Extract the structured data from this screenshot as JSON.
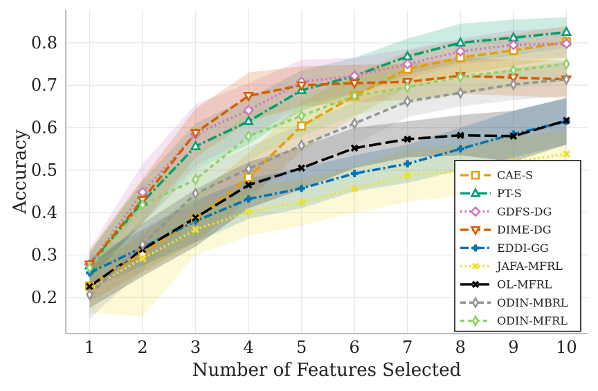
{
  "chart_data": {
    "type": "line",
    "title": "",
    "xlabel": "Number of Features Selected",
    "ylabel": "Accuracy",
    "x": [
      1,
      2,
      3,
      4,
      5,
      6,
      7,
      8,
      9,
      10
    ],
    "x_ticks": [
      "1",
      "2",
      "3",
      "4",
      "5",
      "6",
      "7",
      "8",
      "9",
      "10"
    ],
    "y_ticks": [
      "0.2",
      "0.3",
      "0.4",
      "0.5",
      "0.6",
      "0.7",
      "0.8"
    ],
    "xlim": [
      0.55,
      10.4
    ],
    "ylim": [
      0.115,
      0.878
    ],
    "grid": true,
    "legend_position": "lower-right",
    "series": [
      {
        "name": "CAE-S",
        "color": "#e69f00",
        "dash": "12,5",
        "marker": "square",
        "values": [
          0.227,
          0.305,
          0.385,
          0.483,
          0.604,
          0.675,
          0.738,
          0.765,
          0.782,
          0.802
        ],
        "lower": [
          0.19,
          0.26,
          0.33,
          0.43,
          0.545,
          0.625,
          0.695,
          0.725,
          0.745,
          0.765
        ],
        "upper": [
          0.265,
          0.35,
          0.44,
          0.54,
          0.66,
          0.725,
          0.78,
          0.805,
          0.82,
          0.84
        ]
      },
      {
        "name": "PT-S",
        "color": "#009e73",
        "dash": "14,4,3,4",
        "marker": "triangle",
        "values": [
          0.275,
          0.425,
          0.556,
          0.615,
          0.688,
          0.722,
          0.768,
          0.8,
          0.812,
          0.825
        ],
        "lower": [
          0.245,
          0.375,
          0.5,
          0.56,
          0.64,
          0.68,
          0.725,
          0.755,
          0.77,
          0.79
        ],
        "upper": [
          0.305,
          0.475,
          0.61,
          0.67,
          0.735,
          0.765,
          0.81,
          0.845,
          0.855,
          0.86
        ]
      },
      {
        "name": "GDFS-DG",
        "color": "#cc78bc",
        "dash": "2.5,4",
        "marker": "diamond",
        "values": [
          0.278,
          0.448,
          0.585,
          0.641,
          0.708,
          0.722,
          0.75,
          0.78,
          0.795,
          0.798
        ],
        "lower": [
          0.24,
          0.38,
          0.51,
          0.575,
          0.655,
          0.68,
          0.715,
          0.75,
          0.76,
          0.765
        ],
        "upper": [
          0.315,
          0.515,
          0.655,
          0.705,
          0.76,
          0.765,
          0.785,
          0.81,
          0.83,
          0.835
        ]
      },
      {
        "name": "DIME-DG",
        "color": "#d55e00",
        "dash": "12,5",
        "marker": "triangle-down",
        "values": [
          0.278,
          0.43,
          0.588,
          0.675,
          0.7,
          0.705,
          0.708,
          0.722,
          0.718,
          0.714
        ],
        "lower": [
          0.245,
          0.375,
          0.53,
          0.615,
          0.65,
          0.66,
          0.665,
          0.68,
          0.675,
          0.67
        ],
        "upper": [
          0.31,
          0.48,
          0.645,
          0.73,
          0.745,
          0.748,
          0.75,
          0.765,
          0.76,
          0.758
        ]
      },
      {
        "name": "EDDI-GG",
        "color": "#0173b2",
        "dash": "12,4,3,4",
        "marker": "plus",
        "values": [
          0.258,
          0.318,
          0.38,
          0.432,
          0.457,
          0.492,
          0.515,
          0.55,
          0.585,
          0.615
        ],
        "lower": [
          0.22,
          0.275,
          0.33,
          0.385,
          0.41,
          0.45,
          0.47,
          0.5,
          0.53,
          0.56
        ],
        "upper": [
          0.295,
          0.36,
          0.43,
          0.48,
          0.505,
          0.535,
          0.56,
          0.6,
          0.64,
          0.67
        ]
      },
      {
        "name": "JAFA-MFRL",
        "color": "#ece133",
        "dash": "2.5,4",
        "marker": "x",
        "values": [
          0.22,
          0.292,
          0.36,
          0.402,
          0.425,
          0.456,
          0.488,
          0.498,
          0.52,
          0.538
        ],
        "lower": [
          0.165,
          0.155,
          0.3,
          0.345,
          0.37,
          0.4,
          0.425,
          0.44,
          0.46,
          0.48
        ],
        "upper": [
          0.275,
          0.355,
          0.42,
          0.46,
          0.48,
          0.51,
          0.55,
          0.56,
          0.58,
          0.595
        ]
      },
      {
        "name": "OL-MFRL",
        "color": "#000000",
        "dash": "18,6",
        "marker": "x",
        "values": [
          0.226,
          0.313,
          0.388,
          0.465,
          0.505,
          0.552,
          0.573,
          0.582,
          0.58,
          0.617
        ],
        "lower": [
          0.175,
          0.25,
          0.32,
          0.41,
          0.455,
          0.505,
          0.53,
          0.535,
          0.52,
          0.56
        ],
        "upper": [
          0.275,
          0.375,
          0.455,
          0.52,
          0.555,
          0.6,
          0.615,
          0.63,
          0.64,
          0.67
        ]
      },
      {
        "name": "ODIN-MBRL",
        "color": "#949494",
        "dash": "8,5",
        "marker": "thin-diamond",
        "values": [
          0.207,
          0.325,
          0.445,
          0.503,
          0.558,
          0.61,
          0.662,
          0.682,
          0.702,
          0.714
        ],
        "lower": [
          0.15,
          0.265,
          0.39,
          0.45,
          0.505,
          0.56,
          0.625,
          0.65,
          0.665,
          0.675
        ],
        "upper": [
          0.265,
          0.385,
          0.5,
          0.555,
          0.61,
          0.66,
          0.7,
          0.715,
          0.74,
          0.755
        ]
      },
      {
        "name": "ODIN-MFRL",
        "color": "#8fd16a",
        "dash": "6,5",
        "marker": "thin-diamond",
        "values": [
          0.27,
          0.418,
          0.478,
          0.58,
          0.628,
          0.675,
          0.695,
          0.72,
          0.735,
          0.75
        ],
        "lower": [
          0.235,
          0.365,
          0.42,
          0.525,
          0.58,
          0.63,
          0.655,
          0.68,
          0.695,
          0.71
        ],
        "upper": [
          0.305,
          0.47,
          0.535,
          0.635,
          0.675,
          0.72,
          0.735,
          0.76,
          0.775,
          0.79
        ]
      }
    ]
  }
}
